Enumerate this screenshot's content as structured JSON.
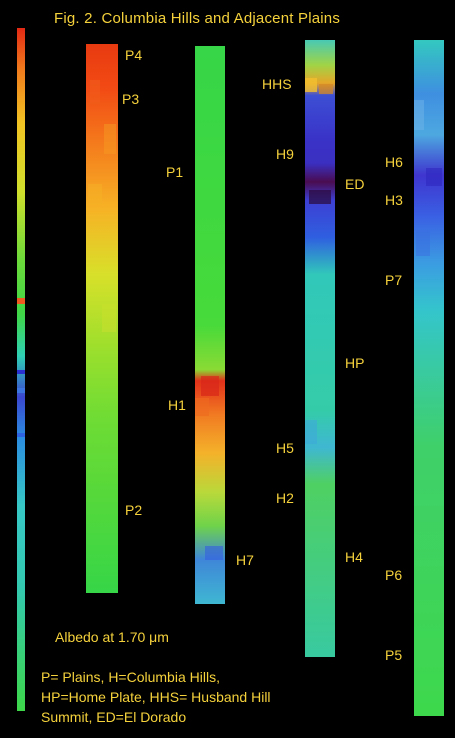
{
  "figure": {
    "title": "Fig. 2.  Columbia Hills and Adjacent Plains",
    "albedo_label": "Albedo at 1.70 μm",
    "legend_lines": [
      "P= Plains, H=Columbia Hills,",
      "HP=Home Plate, HHS= Husband Hill",
      "Summit, ED=El Dorado"
    ]
  },
  "colors": {
    "background": "#000000",
    "label": "#f5d23c"
  },
  "strips": [
    {
      "name": "strip-1",
      "labels": [
        "P4",
        "P3",
        "P2"
      ],
      "palette": [
        "#e83a10",
        "#f24a14",
        "#f7a023",
        "#d8e02a",
        "#9edf2c",
        "#56d83a",
        "#36d648"
      ]
    },
    {
      "name": "strip-2",
      "labels": [
        "P1",
        "H1",
        "H7"
      ],
      "palette": [
        "#36d648",
        "#47da3a",
        "#e2301a",
        "#f4b22a",
        "#b9d93a",
        "#3f86d8",
        "#3fb7d2"
      ]
    },
    {
      "name": "strip-3",
      "labels": [
        "HHS",
        "H9",
        "ED",
        "HP",
        "H5",
        "H2",
        "H4"
      ],
      "palette": [
        "#48c9b4",
        "#e6a528",
        "#3a33c8",
        "#4a0c50",
        "#2f5fe0",
        "#31c8ba",
        "#4fd062"
      ]
    },
    {
      "name": "strip-4",
      "labels": [
        "H6",
        "H3",
        "P7",
        "P6",
        "P5"
      ],
      "palette": [
        "#33c8c0",
        "#3f8fe0",
        "#3f35cf",
        "#3a5fe3",
        "#34c5cc",
        "#3fd06a",
        "#3ed84c"
      ]
    }
  ],
  "scale_bar": {
    "palette": [
      "#e32914",
      "#f2a923",
      "#d8e02a",
      "#3fd648",
      "#2fd0b5",
      "#3a47d0",
      "#2b8de0",
      "#37c8c6",
      "#3ed74a"
    ]
  }
}
